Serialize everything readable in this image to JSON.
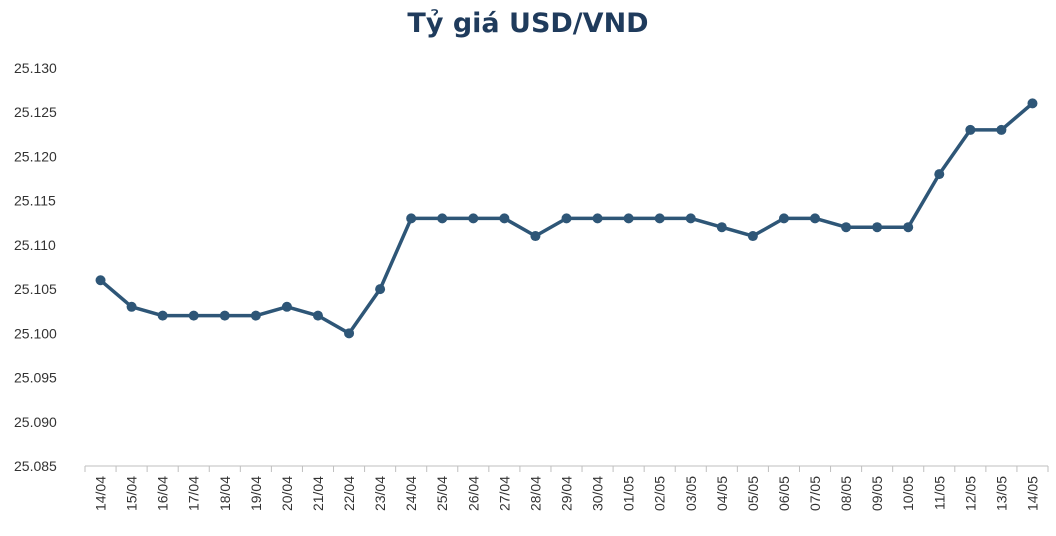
{
  "chart_data": {
    "type": "line",
    "title": "Tỷ giá USD/VND",
    "xlabel": "",
    "ylabel": "",
    "ylim": [
      25085,
      25130
    ],
    "yticks": [
      "25.085",
      "25.090",
      "25.095",
      "25.100",
      "25.105",
      "25.110",
      "25.115",
      "25.120",
      "25.125",
      "25.130"
    ],
    "grid": false,
    "legend": "none",
    "categories": [
      "14/04",
      "15/04",
      "16/04",
      "17/04",
      "18/04",
      "19/04",
      "20/04",
      "21/04",
      "22/04",
      "23/04",
      "24/04",
      "25/04",
      "26/04",
      "27/04",
      "28/04",
      "29/04",
      "30/04",
      "01/05",
      "02/05",
      "03/05",
      "04/05",
      "05/05",
      "06/05",
      "07/05",
      "08/05",
      "09/05",
      "10/05",
      "11/05",
      "12/05",
      "13/05",
      "14/05"
    ],
    "series": [
      {
        "values": [
          25106,
          25103,
          25102,
          25102,
          25102,
          25102,
          25103,
          25102,
          25100,
          25105,
          25113,
          25113,
          25113,
          25113,
          25111,
          25113,
          25113,
          25113,
          25113,
          25113,
          25112,
          25111,
          25113,
          25113,
          25112,
          25112,
          25112,
          25118,
          25123,
          25123,
          25126
        ]
      }
    ],
    "colors": {
      "line": "#2e5677",
      "title": "#1f3b5c",
      "axis": "#bfbfbf",
      "text": "#333333"
    }
  }
}
